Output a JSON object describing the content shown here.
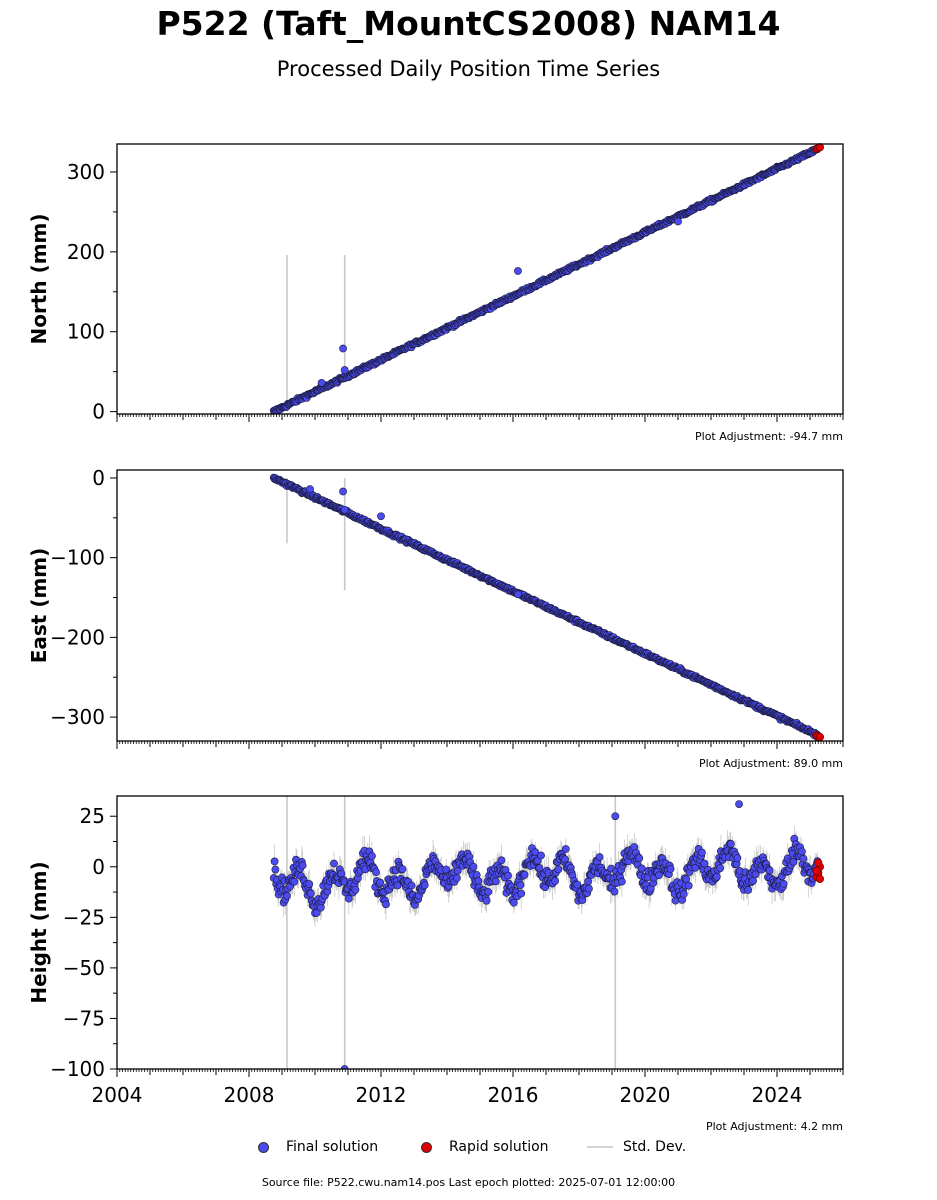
{
  "header": {
    "title": "P522 (Taft_MountCS2008) NAM14",
    "subtitle": "Processed Daily Position Time Series"
  },
  "legend": {
    "final_label": "Final solution",
    "rapid_label": "Rapid solution",
    "std_label": "Std. Dev."
  },
  "footer": {
    "text": "Source file: P522.cwu.nam14.pos  Last epoch plotted: 2025-07-01 12:00:00"
  },
  "colors": {
    "final": "#4b4bf0",
    "final_edge": "#1a1a3a",
    "rapid": "#e00000",
    "std_dev": "#c8c8c8"
  },
  "chart_data": [
    {
      "type": "scatter",
      "ylabel": "North (mm)",
      "xlim": [
        2004,
        2026
      ],
      "ylim": [
        -3,
        335
      ],
      "yticks": [
        0,
        100,
        200,
        300
      ],
      "adjustment": "Plot Adjustment: -94.7 mm",
      "trend": {
        "x0": 2008.75,
        "y0": 0,
        "x1": 2025.3,
        "y1": 330
      },
      "noise_mm": 1.5,
      "std_mm": 3,
      "outliers": [
        [
          2010.85,
          79
        ],
        [
          2010.9,
          52
        ],
        [
          2016.15,
          176
        ],
        [
          2010.2,
          36
        ],
        [
          2021.0,
          238
        ]
      ],
      "big_std": [
        [
          2009.15,
          0,
          196
        ],
        [
          2010.9,
          40,
          196
        ]
      ],
      "rapid": [
        [
          2025.2,
          329
        ],
        [
          2025.25,
          330
        ],
        [
          2025.3,
          331
        ]
      ]
    },
    {
      "type": "scatter",
      "ylabel": "East (mm)",
      "xlim": [
        2004,
        2026
      ],
      "ylim": [
        -330,
        10
      ],
      "yticks": [
        -300,
        -200,
        -100,
        0
      ],
      "adjustment": "Plot Adjustment: 89.0 mm",
      "trend": {
        "x0": 2008.75,
        "y0": 0,
        "x1": 2025.3,
        "y1": -324
      },
      "noise_mm": 1.5,
      "std_mm": 3,
      "outliers": [
        [
          2010.85,
          -17
        ],
        [
          2010.9,
          -40
        ],
        [
          2016.15,
          -146
        ],
        [
          2009.85,
          -14
        ],
        [
          2012.0,
          -48
        ]
      ],
      "big_std": [
        [
          2009.15,
          -82,
          0
        ],
        [
          2010.9,
          -141,
          0
        ]
      ],
      "rapid": [
        [
          2025.2,
          -323
        ],
        [
          2025.25,
          -324
        ],
        [
          2025.3,
          -325
        ]
      ]
    },
    {
      "type": "scatter",
      "ylabel": "Height (mm)",
      "xlabel": "",
      "xlim": [
        2004,
        2026
      ],
      "ylim": [
        -100,
        35
      ],
      "yticks": [
        -100,
        -75,
        -50,
        -25,
        0,
        25
      ],
      "xticks": [
        2004,
        2008,
        2012,
        2016,
        2020,
        2024
      ],
      "adjustment": "Plot Adjustment: 4.2 mm",
      "trend": {
        "x0": 2008.75,
        "y0": -8,
        "x1": 2025.3,
        "y1": 0
      },
      "seasonal_amp_mm": 7,
      "noise_mm": 4,
      "std_mm": 6,
      "outliers": [
        [
          2019.1,
          25
        ],
        [
          2022.85,
          31
        ],
        [
          2010.9,
          -100
        ]
      ],
      "big_std": [
        [
          2009.15,
          -100,
          35
        ],
        [
          2010.9,
          -100,
          35
        ],
        [
          2019.1,
          -100,
          35
        ]
      ],
      "rapid": [
        [
          2025.2,
          -5
        ],
        [
          2025.25,
          -3
        ],
        [
          2025.3,
          0
        ],
        [
          2025.25,
          2
        ],
        [
          2025.2,
          -2
        ],
        [
          2025.3,
          -6
        ]
      ]
    }
  ]
}
